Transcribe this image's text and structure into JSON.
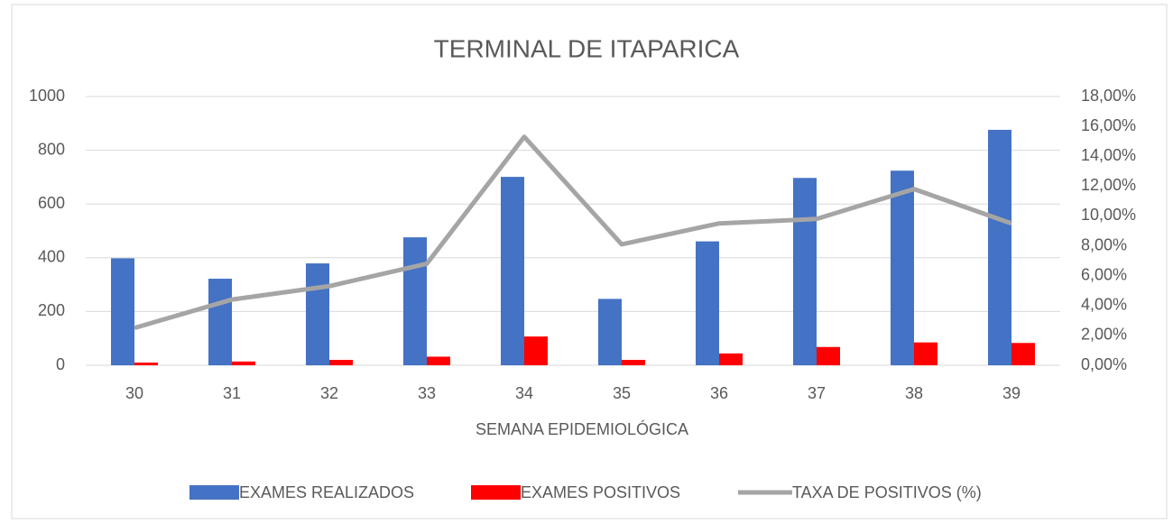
{
  "chart_data": {
    "type": "bar_line",
    "title": "TERMINAL DE ITAPARICA",
    "x_label": "SEMANA EPIDEMIOLÓGICA",
    "categories": [
      "30",
      "31",
      "32",
      "33",
      "34",
      "35",
      "36",
      "37",
      "38",
      "39"
    ],
    "series": [
      {
        "name": "EXAMES REALIZADOS",
        "color": "#4472c4",
        "type": "bar",
        "values": [
          398,
          322,
          379,
          476,
          701,
          247,
          461,
          697,
          724,
          876
        ]
      },
      {
        "name": "EXAMES POSITIVOS",
        "color": "#ff0000",
        "type": "bar",
        "values": [
          10,
          14,
          20,
          32,
          107,
          20,
          44,
          68,
          85,
          83
        ]
      },
      {
        "name": "TAXA DE POSITIVOS (%)",
        "color": "#a5a5a5",
        "type": "line",
        "axis": "y2",
        "values": [
          2.5,
          4.4,
          5.3,
          6.8,
          15.3,
          8.1,
          9.5,
          9.8,
          11.8,
          9.5
        ]
      }
    ],
    "ylim": [
      0,
      1000
    ],
    "yticks": [
      0,
      200,
      400,
      600,
      800,
      1000
    ],
    "y2lim": [
      0,
      18
    ],
    "y2ticks": [
      {
        "value": 0,
        "label": "0,00%"
      },
      {
        "value": 2,
        "label": "2,00%"
      },
      {
        "value": 4,
        "label": "4,00%"
      },
      {
        "value": 6,
        "label": "6,00%"
      },
      {
        "value": 8,
        "label": "8,00%"
      },
      {
        "value": 10,
        "label": "10,00%"
      },
      {
        "value": 12,
        "label": "12,00%"
      },
      {
        "value": 14,
        "label": "14,00%"
      },
      {
        "value": 16,
        "label": "16,00%"
      },
      {
        "value": 18,
        "label": "18,00%"
      }
    ],
    "grid": true,
    "legend": "bottom"
  }
}
